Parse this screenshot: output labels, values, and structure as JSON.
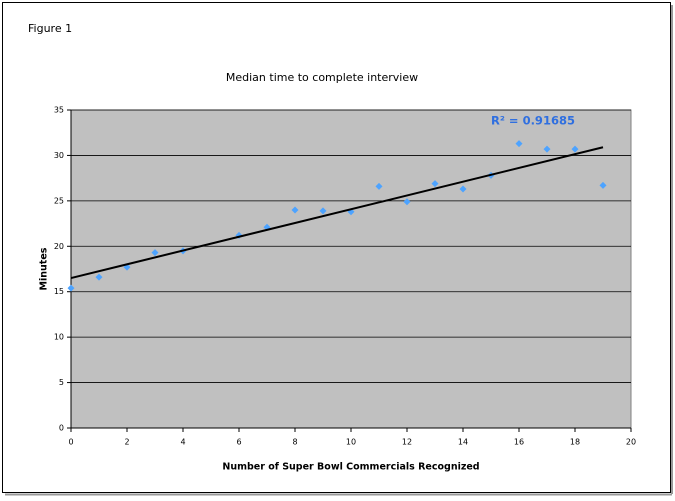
{
  "chart_data": {
    "type": "scatter",
    "figure_label": "Figure 1",
    "title": "Median time to complete interview",
    "x_label": "Number of Super Bowl Commercials Recognized",
    "y_label": "Minutes",
    "annotation": "R² = 0.91685",
    "series": [
      {
        "color": "#4da3ff",
        "x": [
          0,
          1,
          2,
          3,
          4,
          6,
          7,
          8,
          9,
          10,
          11,
          12,
          13,
          14,
          15,
          16,
          17,
          18,
          19
        ],
        "values": [
          15.4,
          16.6,
          17.7,
          19.3,
          19.5,
          21.2,
          22.1,
          24.0,
          23.9,
          23.8,
          26.6,
          24.9,
          26.9,
          26.3,
          27.8,
          31.3,
          30.7,
          30.7,
          26.7
        ]
      }
    ],
    "trendline": {
      "color": "#000000",
      "x": [
        0,
        19
      ],
      "values": [
        16.5,
        30.9
      ]
    },
    "xlim": [
      0,
      20
    ],
    "xticks": [
      0,
      2,
      4,
      6,
      8,
      10,
      12,
      14,
      16,
      18,
      20
    ],
    "ylim": [
      0,
      35
    ],
    "yticks": [
      0,
      5,
      10,
      15,
      20,
      25,
      30,
      35
    ],
    "grid": true,
    "plot_background": "#c0c0c0"
  }
}
